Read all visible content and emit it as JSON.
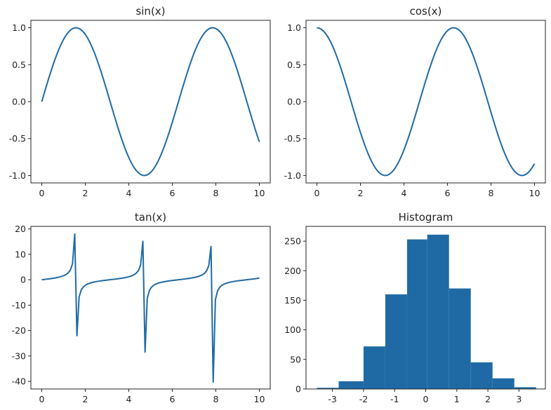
{
  "chart_data": [
    {
      "type": "line",
      "title": "sin(x)",
      "function": "sin",
      "x_range": [
        0,
        10
      ],
      "xlim": [
        -0.5,
        10.5
      ],
      "ylim": [
        -1.1,
        1.1
      ],
      "xticks": [
        0,
        2,
        4,
        6,
        8,
        10
      ],
      "yticks": [
        -1.0,
        -0.5,
        0.0,
        0.5,
        1.0
      ],
      "xtick_labels": [
        "0",
        "2",
        "4",
        "6",
        "8",
        "10"
      ],
      "ytick_labels": [
        "-1.0",
        "-0.5",
        "0.0",
        "0.5",
        "1.0"
      ],
      "series_color": "#1f6aa5",
      "grid": false
    },
    {
      "type": "line",
      "title": "cos(x)",
      "function": "cos",
      "x_range": [
        0,
        10
      ],
      "xlim": [
        -0.5,
        10.5
      ],
      "ylim": [
        -1.1,
        1.1
      ],
      "xticks": [
        0,
        2,
        4,
        6,
        8,
        10
      ],
      "yticks": [
        -1.0,
        -0.5,
        0.0,
        0.5,
        1.0
      ],
      "xtick_labels": [
        "0",
        "2",
        "4",
        "6",
        "8",
        "10"
      ],
      "ytick_labels": [
        "-1.0",
        "-0.5",
        "0.0",
        "0.5",
        "1.0"
      ],
      "series_color": "#1f6aa5",
      "grid": false
    },
    {
      "type": "line",
      "title": "tan(x)",
      "function": "tan",
      "x_range": [
        0,
        10
      ],
      "xlim": [
        -0.5,
        10.5
      ],
      "ylim": [
        -43,
        21
      ],
      "xticks": [
        0,
        2,
        4,
        6,
        8,
        10
      ],
      "yticks": [
        -40,
        -30,
        -20,
        -10,
        0,
        10,
        20
      ],
      "xtick_labels": [
        "0",
        "2",
        "4",
        "6",
        "8",
        "10"
      ],
      "ytick_labels": [
        "-40",
        "-30",
        "-20",
        "-10",
        "0",
        "10",
        "20"
      ],
      "series_color": "#1f6aa5",
      "grid": false
    },
    {
      "type": "bar",
      "title": "Histogram",
      "bin_edges": [
        -3.5,
        -2.8,
        -2.0,
        -1.3,
        -0.6,
        0.05,
        0.75,
        1.45,
        2.15,
        2.85,
        3.55
      ],
      "values": [
        2,
        13,
        72,
        160,
        253,
        261,
        170,
        45,
        18,
        3
      ],
      "xlim": [
        -3.85,
        3.85
      ],
      "ylim": [
        0,
        275
      ],
      "xticks": [
        -3,
        -2,
        -1,
        0,
        1,
        2,
        3
      ],
      "yticks": [
        0,
        50,
        100,
        150,
        200,
        250
      ],
      "xtick_labels": [
        "-3",
        "-2",
        "-1",
        "0",
        "1",
        "2",
        "3"
      ],
      "ytick_labels": [
        "0",
        "50",
        "100",
        "150",
        "200",
        "250"
      ],
      "series_color": "#1f6aa5",
      "grid": false
    }
  ]
}
